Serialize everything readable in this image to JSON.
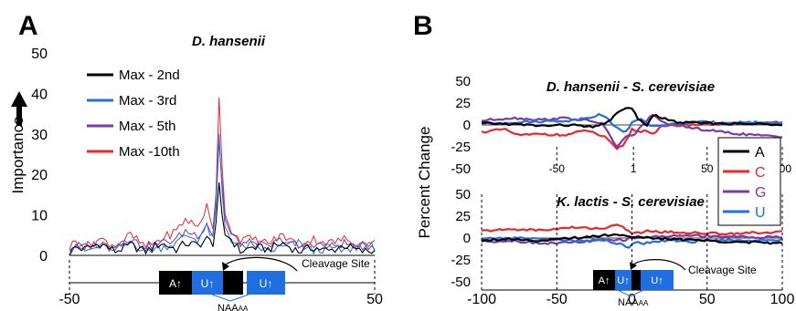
{
  "panels": {
    "a_letter": "A",
    "b_letter": "B"
  },
  "colors": {
    "black": "#000000",
    "blue": "#1f6fe0",
    "purple": "#7a3aa8",
    "red": "#e8282a",
    "seg_black": "#000000",
    "seg_blue": "#1f6fe0"
  },
  "schematic": {
    "a_label": "A↑",
    "u_label": "U↑",
    "cleavage_label": "Cleavage Site",
    "naa_label": "NAA",
    "naa_sub": "AA"
  },
  "chart_data": [
    {
      "id": "A",
      "type": "line",
      "title": "D. hansenii",
      "xlabel": "",
      "ylabel": "Importance",
      "xlim": [
        -50,
        50
      ],
      "ylim": [
        0,
        50
      ],
      "yticks": [
        "0",
        "10",
        "20",
        "30",
        "40",
        "50"
      ],
      "xticks": [
        "-50",
        "50"
      ],
      "legend_position": "top-left",
      "series": [
        {
          "name": "Max - 2nd",
          "color": "#000000",
          "key_points": [
            [
              -50,
              0.5
            ],
            [
              -48,
              2
            ],
            [
              -45,
              1.5
            ],
            [
              -40,
              3
            ],
            [
              -35,
              1
            ],
            [
              -30,
              2.5
            ],
            [
              -25,
              1
            ],
            [
              -20,
              3
            ],
            [
              -15,
              1.5
            ],
            [
              -12,
              3
            ],
            [
              -8,
              2.5
            ],
            [
              -5,
              4
            ],
            [
              -3,
              3
            ],
            [
              -2,
              8
            ],
            [
              -1,
              18
            ],
            [
              0,
              10
            ],
            [
              1,
              5
            ],
            [
              3,
              4
            ],
            [
              6,
              1
            ],
            [
              10,
              2
            ],
            [
              15,
              1.5
            ],
            [
              20,
              3
            ],
            [
              25,
              1
            ],
            [
              30,
              2
            ],
            [
              35,
              1
            ],
            [
              40,
              2.5
            ],
            [
              45,
              1
            ],
            [
              50,
              1
            ]
          ]
        },
        {
          "name": "Max - 3rd",
          "color": "#1f6fe0",
          "key_points": [
            [
              -50,
              1
            ],
            [
              -48,
              3
            ],
            [
              -45,
              1
            ],
            [
              -40,
              2
            ],
            [
              -35,
              1.5
            ],
            [
              -30,
              3.5
            ],
            [
              -25,
              1
            ],
            [
              -20,
              2
            ],
            [
              -15,
              3
            ],
            [
              -12,
              5
            ],
            [
              -8,
              4
            ],
            [
              -5,
              7
            ],
            [
              -3,
              4
            ],
            [
              -2,
              14
            ],
            [
              -1,
              30
            ],
            [
              0,
              16
            ],
            [
              1,
              7
            ],
            [
              3,
              4
            ],
            [
              6,
              2
            ],
            [
              10,
              2.5
            ],
            [
              15,
              1
            ],
            [
              20,
              2
            ],
            [
              25,
              3
            ],
            [
              30,
              1
            ],
            [
              35,
              2
            ],
            [
              40,
              1
            ],
            [
              45,
              2.5
            ],
            [
              50,
              2
            ]
          ]
        },
        {
          "name": "Max - 5th",
          "color": "#7a3aa8",
          "key_points": [
            [
              -50,
              1.5
            ],
            [
              -48,
              2.5
            ],
            [
              -45,
              2
            ],
            [
              -40,
              3
            ],
            [
              -35,
              2
            ],
            [
              -30,
              4
            ],
            [
              -25,
              2
            ],
            [
              -20,
              3
            ],
            [
              -15,
              4
            ],
            [
              -12,
              6
            ],
            [
              -8,
              5
            ],
            [
              -5,
              8
            ],
            [
              -3,
              5
            ],
            [
              -2,
              12
            ],
            [
              -1,
              28
            ],
            [
              0,
              18
            ],
            [
              1,
              9
            ],
            [
              3,
              5
            ],
            [
              6,
              3
            ],
            [
              10,
              3
            ],
            [
              15,
              2
            ],
            [
              20,
              4
            ],
            [
              25,
              2
            ],
            [
              30,
              3
            ],
            [
              35,
              2
            ],
            [
              40,
              3
            ],
            [
              45,
              2
            ],
            [
              50,
              2.5
            ]
          ]
        },
        {
          "name": "Max -10th",
          "color": "#e8282a",
          "key_points": [
            [
              -50,
              2
            ],
            [
              -48,
              3.5
            ],
            [
              -45,
              2
            ],
            [
              -40,
              4
            ],
            [
              -35,
              2.5
            ],
            [
              -30,
              5
            ],
            [
              -25,
              2
            ],
            [
              -20,
              4
            ],
            [
              -15,
              6
            ],
            [
              -12,
              9
            ],
            [
              -8,
              7
            ],
            [
              -5,
              12
            ],
            [
              -3,
              6
            ],
            [
              -2,
              15
            ],
            [
              -1,
              39
            ],
            [
              0,
              22
            ],
            [
              1,
              10
            ],
            [
              3,
              6
            ],
            [
              6,
              4
            ],
            [
              10,
              4
            ],
            [
              15,
              3
            ],
            [
              20,
              5
            ],
            [
              25,
              2.5
            ],
            [
              30,
              4
            ],
            [
              35,
              3
            ],
            [
              40,
              4
            ],
            [
              45,
              3
            ],
            [
              50,
              3
            ]
          ]
        }
      ]
    },
    {
      "id": "B_top",
      "type": "line",
      "title": "D. hansenii - S. cerevisiae",
      "xlabel": "",
      "ylabel": "Percent Change",
      "xlim": [
        -100,
        100
      ],
      "ylim": [
        -50,
        50
      ],
      "yticks": [
        "50",
        "25",
        "0",
        "-25",
        "-50"
      ],
      "inline_xticks": [
        "-50",
        "1",
        "50",
        "100"
      ],
      "legend_position": "right",
      "series": [
        {
          "name": "A",
          "color": "#000000",
          "key_points": [
            [
              -100,
              2
            ],
            [
              -80,
              1
            ],
            [
              -60,
              -1
            ],
            [
              -40,
              0
            ],
            [
              -25,
              -3
            ],
            [
              -15,
              5
            ],
            [
              -5,
              20
            ],
            [
              0,
              18
            ],
            [
              5,
              5
            ],
            [
              10,
              0
            ],
            [
              15,
              12
            ],
            [
              20,
              8
            ],
            [
              30,
              3
            ],
            [
              50,
              2
            ],
            [
              75,
              1
            ],
            [
              100,
              1
            ]
          ]
        },
        {
          "name": "C",
          "color": "#e8282a",
          "key_points": [
            [
              -100,
              -8
            ],
            [
              -85,
              -5
            ],
            [
              -75,
              -12
            ],
            [
              -60,
              -10
            ],
            [
              -45,
              -12
            ],
            [
              -30,
              -6
            ],
            [
              -18,
              -14
            ],
            [
              -10,
              -28
            ],
            [
              -5,
              -22
            ],
            [
              0,
              -5
            ],
            [
              5,
              -8
            ],
            [
              10,
              -6
            ],
            [
              14,
              -10
            ],
            [
              20,
              -2
            ],
            [
              35,
              0
            ],
            [
              60,
              1
            ],
            [
              80,
              2
            ],
            [
              100,
              2
            ]
          ]
        },
        {
          "name": "G",
          "color": "#7a3aa8",
          "key_points": [
            [
              -100,
              5
            ],
            [
              -80,
              8
            ],
            [
              -60,
              6
            ],
            [
              -45,
              8
            ],
            [
              -30,
              5
            ],
            [
              -20,
              2
            ],
            [
              -10,
              -25
            ],
            [
              -4,
              -14
            ],
            [
              2,
              -10
            ],
            [
              8,
              2
            ],
            [
              14,
              12
            ],
            [
              20,
              3
            ],
            [
              35,
              -2
            ],
            [
              50,
              -6
            ],
            [
              70,
              -10
            ],
            [
              85,
              -12
            ],
            [
              100,
              -14
            ]
          ]
        },
        {
          "name": "U",
          "color": "#1f6fe0",
          "key_points": [
            [
              -100,
              1
            ],
            [
              -80,
              3
            ],
            [
              -60,
              4
            ],
            [
              -40,
              5
            ],
            [
              -20,
              12
            ],
            [
              -10,
              -3
            ],
            [
              -5,
              -10
            ],
            [
              0,
              3
            ],
            [
              5,
              8
            ],
            [
              12,
              -2
            ],
            [
              20,
              0
            ],
            [
              40,
              3
            ],
            [
              60,
              3
            ],
            [
              80,
              3
            ],
            [
              100,
              3
            ]
          ]
        }
      ]
    },
    {
      "id": "B_bottom",
      "type": "line",
      "title": "K. lactis - S. cerevisiae",
      "xlabel": "",
      "ylabel": "Percent Change",
      "xlim": [
        -100,
        100
      ],
      "ylim": [
        -50,
        50
      ],
      "yticks": [
        "50",
        "25",
        "0",
        "-25",
        "-50"
      ],
      "xticks": [
        "-100",
        "-50",
        "0",
        "50",
        "100"
      ],
      "series": [
        {
          "name": "A",
          "color": "#000000",
          "key_points": [
            [
              -100,
              -2
            ],
            [
              -80,
              -1
            ],
            [
              -60,
              -3
            ],
            [
              -40,
              0
            ],
            [
              -20,
              3
            ],
            [
              -10,
              4
            ],
            [
              0,
              2
            ],
            [
              10,
              0
            ],
            [
              20,
              -1
            ],
            [
              40,
              -2
            ],
            [
              60,
              -4
            ],
            [
              80,
              -5
            ],
            [
              100,
              -6
            ]
          ]
        },
        {
          "name": "C",
          "color": "#e8282a",
          "key_points": [
            [
              -100,
              8
            ],
            [
              -80,
              10
            ],
            [
              -60,
              9
            ],
            [
              -40,
              12
            ],
            [
              -20,
              11
            ],
            [
              -8,
              15
            ],
            [
              -2,
              8
            ],
            [
              0,
              5
            ],
            [
              5,
              6
            ],
            [
              10,
              8
            ],
            [
              20,
              7
            ],
            [
              40,
              6
            ],
            [
              60,
              5
            ],
            [
              80,
              6
            ],
            [
              100,
              7
            ]
          ]
        },
        {
          "name": "G",
          "color": "#7a3aa8",
          "key_points": [
            [
              -100,
              -4
            ],
            [
              -80,
              -3
            ],
            [
              -60,
              -6
            ],
            [
              -40,
              -5
            ],
            [
              -20,
              -3
            ],
            [
              -5,
              -2
            ],
            [
              0,
              0
            ],
            [
              10,
              1
            ],
            [
              20,
              2
            ],
            [
              40,
              3
            ],
            [
              60,
              2
            ],
            [
              80,
              1
            ],
            [
              100,
              1
            ]
          ]
        },
        {
          "name": "U",
          "color": "#1f6fe0",
          "key_points": [
            [
              -100,
              -1
            ],
            [
              -80,
              0
            ],
            [
              -60,
              -1
            ],
            [
              -40,
              -3
            ],
            [
              -20,
              -2
            ],
            [
              -8,
              -7
            ],
            [
              -2,
              -10
            ],
            [
              2,
              -4
            ],
            [
              8,
              -6
            ],
            [
              20,
              -3
            ],
            [
              40,
              -4
            ],
            [
              60,
              -2
            ],
            [
              80,
              -3
            ],
            [
              100,
              -2
            ]
          ]
        }
      ]
    }
  ]
}
